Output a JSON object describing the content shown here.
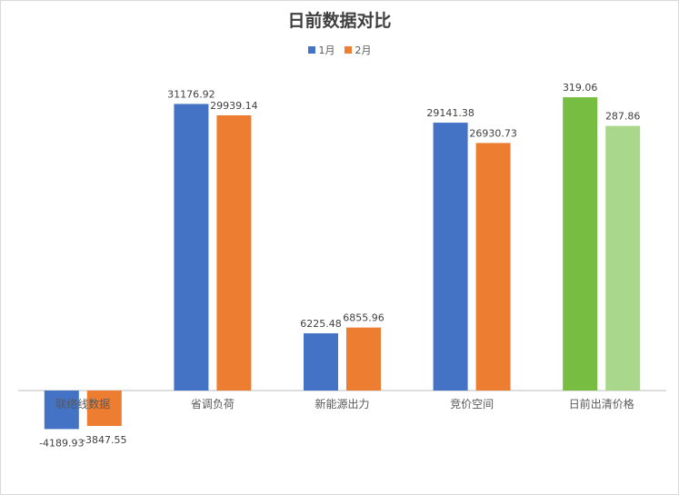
{
  "chart_data": {
    "type": "bar",
    "title": "日前数据对比",
    "categories": [
      "联络线数据",
      "省调负荷",
      "新能源出力",
      "竞价空间",
      "日前出清价格"
    ],
    "series": [
      {
        "name": "1月",
        "values": [
          -4189.93,
          31176.92,
          6225.48,
          29141.38,
          319.06
        ]
      },
      {
        "name": "2月",
        "values": [
          -3847.55,
          29939.14,
          6855.96,
          26930.73,
          287.86
        ]
      }
    ],
    "value_labels": [
      [
        "-4189.93",
        "31176.92",
        "6225.48",
        "29141.38",
        "319.06"
      ],
      [
        "-3847.55",
        "29939.14",
        "6855.96",
        "26930.73",
        "287.86"
      ]
    ],
    "axis_groups": [
      {
        "categories": [
          0,
          1,
          2,
          3
        ],
        "ylim": [
          -4200,
          33000
        ]
      },
      {
        "categories": [
          4
        ],
        "ylim": [
          -42,
          330
        ]
      }
    ],
    "legend_position": "top",
    "grid": false,
    "colors": {
      "series": [
        "#4472C4",
        "#ED7D31"
      ],
      "price_category": [
        "#76BD42",
        "#A9D78C"
      ],
      "axis": "#BFBFBF",
      "label_text": "#404040",
      "category_text": "#595959"
    }
  }
}
